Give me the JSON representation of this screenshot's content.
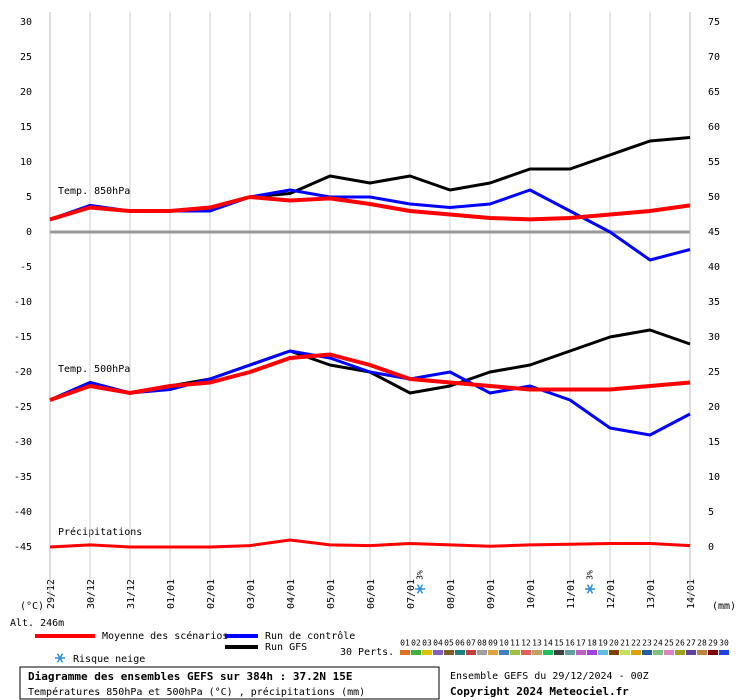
{
  "chart_data": {
    "type": "line",
    "title": "Diagramme des ensembles GEFS sur 384h : 37.2N 15E",
    "subtitle": "Températures 850hPa et 500hPa (°C) , précipitations (mm)",
    "run_info": "Ensemble GEFS du 29/12/2024 - 00Z",
    "copyright": "Copyright 2024 Meteociel.fr",
    "y_unit": "(°C)",
    "y2_unit": "(mm)",
    "altitude": "Alt. 246m",
    "labels": {
      "t850": "Temp. 850hPa",
      "t500": "Temp. 500hPa",
      "precip": "Précipitations"
    },
    "x": [
      0,
      24,
      48,
      72,
      96,
      120,
      144,
      168,
      192,
      216,
      240,
      264,
      288,
      312,
      336,
      360,
      384
    ],
    "xlim": [
      0,
      384
    ],
    "xticks": [
      {
        "value": 0,
        "label": "29/12"
      },
      {
        "value": 24,
        "label": "30/12"
      },
      {
        "value": 48,
        "label": "31/12"
      },
      {
        "value": 72,
        "label": "01/01"
      },
      {
        "value": 96,
        "label": "02/01"
      },
      {
        "value": 120,
        "label": "03/01"
      },
      {
        "value": 144,
        "label": "04/01"
      },
      {
        "value": 168,
        "label": "05/01"
      },
      {
        "value": 192,
        "label": "06/01"
      },
      {
        "value": 216,
        "label": "07/01"
      },
      {
        "value": 240,
        "label": "08/01"
      },
      {
        "value": 264,
        "label": "09/01"
      },
      {
        "value": 288,
        "label": "10/01"
      },
      {
        "value": 312,
        "label": "11/01"
      },
      {
        "value": 336,
        "label": "12/01"
      },
      {
        "value": 360,
        "label": "13/01"
      },
      {
        "value": 384,
        "label": "14/01"
      }
    ],
    "ylim": [
      -45,
      30
    ],
    "yticks": [
      30,
      25,
      20,
      15,
      10,
      5,
      0,
      -5,
      -10,
      -15,
      -20,
      -25,
      -30,
      -35,
      -40,
      -45
    ],
    "y2lim": [
      0,
      75
    ],
    "y2ticks": [
      75,
      70,
      65,
      60,
      55,
      50,
      45,
      40,
      35,
      30,
      25,
      20,
      15,
      10,
      5,
      0
    ],
    "series": [
      {
        "name": "Moyenne des scénarios",
        "color": "#ff0000",
        "width": 4,
        "values": [
          1.8,
          3.5,
          3,
          3,
          3.5,
          5,
          4.5,
          4.8,
          4,
          3,
          2.5,
          2,
          1.8,
          2,
          2.5,
          3,
          3.8
        ],
        "values_500": [
          -24,
          -22,
          -23,
          -22,
          -21.5,
          -20,
          -18,
          -17.5,
          -19,
          -21,
          -21.5,
          -22,
          -22.5,
          -22.5,
          -22.5,
          -22,
          -21.5
        ]
      },
      {
        "name": "Run de contrôle",
        "color": "#0000ff",
        "width": 3,
        "values": [
          1.8,
          3.8,
          3,
          3,
          3,
          5,
          6,
          5,
          5,
          4,
          3.5,
          4,
          6,
          3,
          0,
          -4,
          -2.5
        ],
        "values_500": [
          -24,
          -21.5,
          -23,
          -22.5,
          -21,
          -19,
          -17,
          -18,
          -20,
          -21,
          -20,
          -23,
          -22,
          -24,
          -28,
          -29,
          -26
        ]
      },
      {
        "name": "Run GFS",
        "color": "#000000",
        "width": 3,
        "values": [
          1.8,
          3.5,
          3,
          3,
          3.5,
          5,
          5.5,
          8,
          7,
          8,
          6,
          7,
          9,
          9,
          11,
          13,
          13.5
        ],
        "values_500": [
          -24,
          -21.5,
          -23,
          -22,
          -21,
          -19,
          -17,
          -19,
          -20,
          -23,
          -22,
          -20,
          -19,
          -17,
          -15,
          -14,
          -16
        ]
      }
    ],
    "precipitation": {
      "axis": "y2",
      "color": "#ff0000",
      "values": [
        0,
        0.3,
        0,
        0,
        0,
        0.2,
        1,
        0.3,
        0.2,
        0.5,
        0.3,
        0.1,
        0.3,
        0.4,
        0.5,
        0.5,
        0.2
      ]
    },
    "snow_legend": "Risque neige",
    "snow_risk": [
      {
        "x": 222,
        "label": "3%"
      },
      {
        "x": 324,
        "label": "3%"
      }
    ],
    "perts_label": "30 Perts.",
    "perts": [
      {
        "name": "01",
        "color": "#e07020"
      },
      {
        "name": "02",
        "color": "#40b040"
      },
      {
        "name": "03",
        "color": "#e0c000"
      },
      {
        "name": "04",
        "color": "#8060c0"
      },
      {
        "name": "05",
        "color": "#806020"
      },
      {
        "name": "06",
        "color": "#208080"
      },
      {
        "name": "07",
        "color": "#c04040"
      },
      {
        "name": "08",
        "color": "#a0a0a0"
      },
      {
        "name": "09",
        "color": "#e0a040"
      },
      {
        "name": "10",
        "color": "#4080c0"
      },
      {
        "name": "11",
        "color": "#a0c040"
      },
      {
        "name": "12",
        "color": "#e06060"
      },
      {
        "name": "13",
        "color": "#c0a060"
      },
      {
        "name": "14",
        "color": "#20c060"
      },
      {
        "name": "15",
        "color": "#404040"
      },
      {
        "name": "16",
        "color": "#60a0a0"
      },
      {
        "name": "17",
        "color": "#c060c0"
      },
      {
        "name": "18",
        "color": "#a040e0"
      },
      {
        "name": "19",
        "color": "#60c0e0"
      },
      {
        "name": "20",
        "color": "#804000"
      },
      {
        "name": "21",
        "color": "#c0e060"
      },
      {
        "name": "22",
        "color": "#e0a000"
      },
      {
        "name": "23",
        "color": "#2060a0"
      },
      {
        "name": "24",
        "color": "#80c080"
      },
      {
        "name": "25",
        "color": "#e080c0"
      },
      {
        "name": "26",
        "color": "#a0a020"
      },
      {
        "name": "27",
        "color": "#6040a0"
      },
      {
        "name": "28",
        "color": "#c08040"
      },
      {
        "name": "29",
        "color": "#800000"
      },
      {
        "name": "30",
        "color": "#2040e0"
      }
    ]
  }
}
